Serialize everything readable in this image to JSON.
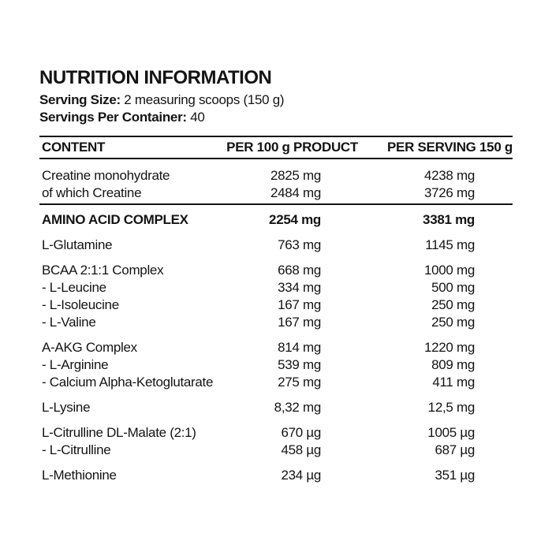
{
  "page": {
    "title": "NUTRITION INFORMATION",
    "serving_size": {
      "label": "Serving Size:",
      "value": "2 measuring scoops (150 g)"
    },
    "servings_per_container": {
      "label": "Servings Per Container:",
      "value": "40"
    }
  },
  "table": {
    "headers": {
      "content": "CONTENT",
      "per100": "PER 100 g PRODUCT",
      "serving": "PER SERVING 150 g"
    },
    "groups": [
      {
        "divider_after": true,
        "rows": [
          {
            "name": "Creatine monohydrate",
            "per100": "2825 mg",
            "serving": "4238 mg",
            "bold": false
          },
          {
            "name": "of which Creatine",
            "per100": "2484 mg",
            "serving": "3726 mg",
            "bold": false
          }
        ]
      },
      {
        "after_divider": true,
        "rows": [
          {
            "name": "AMINO ACID COMPLEX",
            "per100": "2254 mg",
            "serving": "3381 mg",
            "bold": true
          }
        ]
      },
      {
        "rows": [
          {
            "name": "L-Glutamine",
            "per100": "763 mg",
            "serving": "1145 mg",
            "bold": false
          }
        ]
      },
      {
        "rows": [
          {
            "name": "BCAA 2:1:1 Complex",
            "per100": "668 mg",
            "serving": "1000 mg",
            "bold": false
          },
          {
            "name": "- L-Leucine",
            "per100": "334 mg",
            "serving": "500 mg",
            "bold": false
          },
          {
            "name": "- L-Isoleucine",
            "per100": "167 mg",
            "serving": "250 mg",
            "bold": false
          },
          {
            "name": "- L-Valine",
            "per100": "167 mg",
            "serving": "250 mg",
            "bold": false
          }
        ]
      },
      {
        "rows": [
          {
            "name": "A-AKG Complex",
            "per100": "814 mg",
            "serving": "1220 mg",
            "bold": false
          },
          {
            "name": "- L-Arginine",
            "per100": "539 mg",
            "serving": "809 mg",
            "bold": false
          },
          {
            "name": "- Calcium Alpha-Ketoglutarate",
            "per100": "275 mg",
            "serving": "411 mg",
            "bold": false
          }
        ]
      },
      {
        "rows": [
          {
            "name": "L-Lysine",
            "per100": "8,32 mg",
            "serving": "12,5 mg",
            "bold": false
          }
        ]
      },
      {
        "rows": [
          {
            "name": "L-Citrulline DL-Malate (2:1)",
            "per100": "670 µg",
            "serving": "1005 µg",
            "bold": false
          },
          {
            "name": "- L-Citrulline",
            "per100": "458 µg",
            "serving": "687 µg",
            "bold": false
          }
        ]
      },
      {
        "rows": [
          {
            "name": "L-Methionine",
            "per100": "234 µg",
            "serving": "351 µg",
            "bold": false
          }
        ]
      }
    ]
  }
}
